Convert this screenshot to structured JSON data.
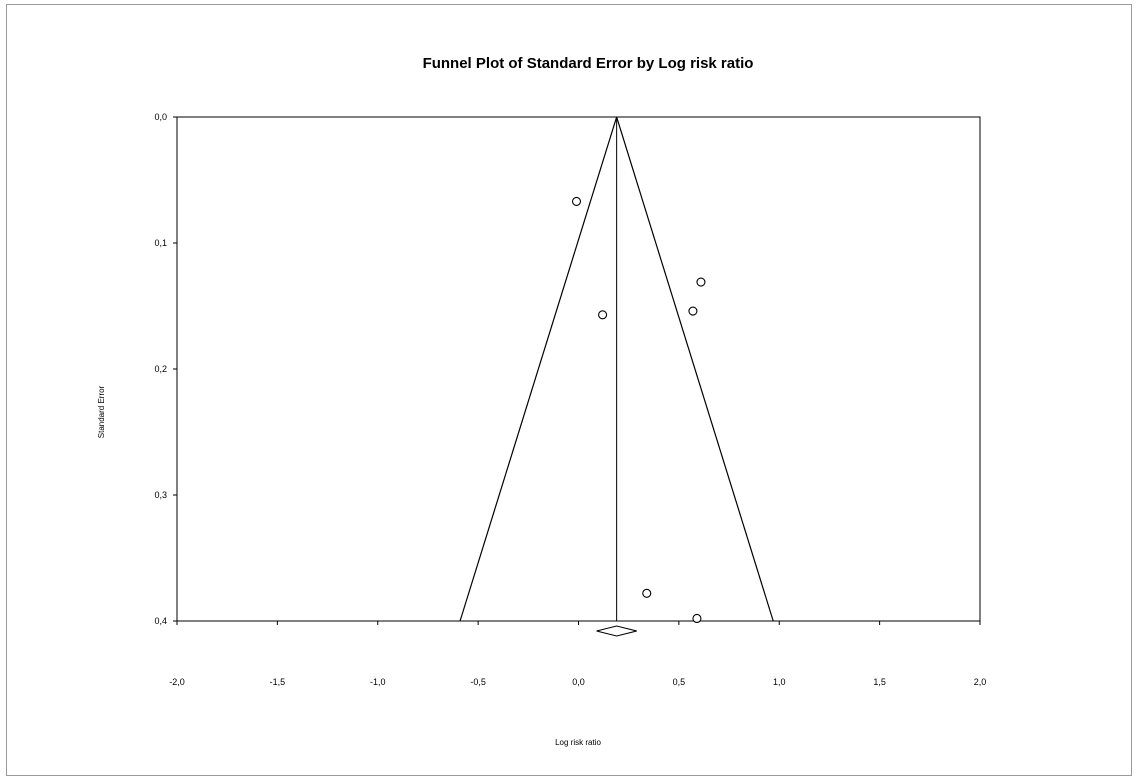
{
  "chart_data": {
    "type": "scatter",
    "title": "Funnel Plot of Standard Error by Log risk ratio",
    "xlabel": "Log risk ratio",
    "ylabel": "Standard Error",
    "xlim": [
      -2.0,
      2.0
    ],
    "ylim": [
      0.0,
      0.4
    ],
    "y_inverted": true,
    "grid": false,
    "x_ticks": [
      "-2,0",
      "-1,5",
      "-1,0",
      "-0,5",
      "0,0",
      "0,5",
      "1,0",
      "1,5",
      "2,0"
    ],
    "x_tick_values": [
      -2.0,
      -1.5,
      -1.0,
      -0.5,
      0.0,
      0.5,
      1.0,
      1.5,
      2.0
    ],
    "y_ticks": [
      "0,0",
      "0,1",
      "0,2",
      "0,3",
      "0,4"
    ],
    "y_tick_values": [
      0.0,
      0.1,
      0.2,
      0.3,
      0.4
    ],
    "points": [
      {
        "x": -0.01,
        "y": 0.067
      },
      {
        "x": 0.61,
        "y": 0.131
      },
      {
        "x": 0.57,
        "y": 0.154
      },
      {
        "x": 0.12,
        "y": 0.157
      },
      {
        "x": 0.34,
        "y": 0.378
      },
      {
        "x": 0.59,
        "y": 0.398
      }
    ],
    "pooled_estimate": 0.19,
    "funnel_limits_at_max_se": [
      -0.59,
      0.97
    ],
    "summary_diamond": {
      "center": 0.19,
      "lower": 0.09,
      "upper": 0.29
    }
  }
}
